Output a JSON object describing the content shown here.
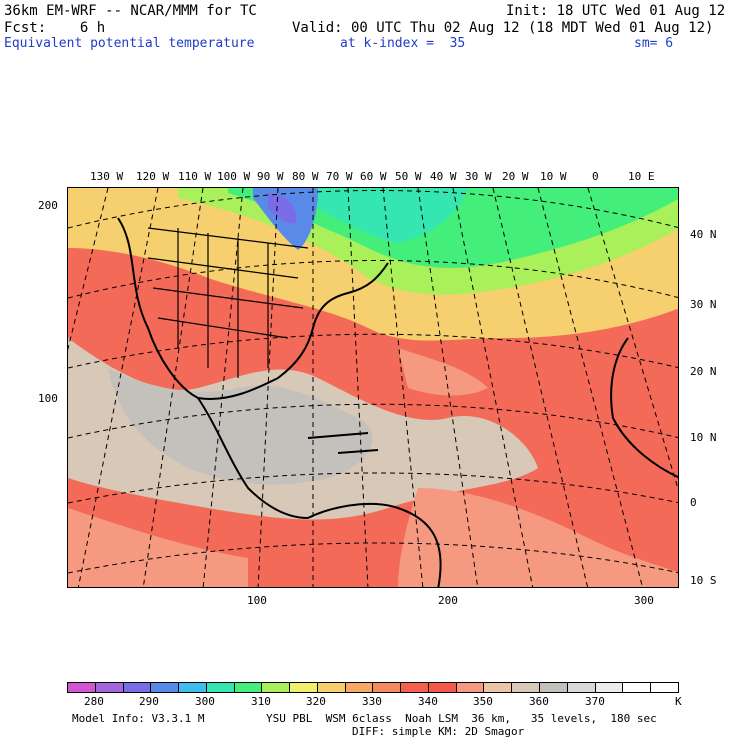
{
  "header": {
    "line1_left": "36km EM-WRF -- NCAR/MMM for TC",
    "line1_right": "Init: 18 UTC Wed 01 Aug 12",
    "line2_left": "Fcst:    6 h",
    "line2_right": "Valid: 00 UTC Thu 02 Aug 12 (18 MDT Wed 01 Aug 12)",
    "line3_left": "Equivalent potential temperature",
    "line3_mid": "at k-index =  35",
    "line3_right": "sm= 6"
  },
  "map": {
    "lon_labels": [
      "130 W",
      "120 W",
      "110 W",
      "100 W",
      "90 W",
      "80 W",
      "70 W",
      "60 W",
      "50 W",
      "40 W",
      "30 W",
      "20 W",
      "10 W",
      "0",
      "10 E"
    ],
    "lat_labels": [
      "40 N",
      "30 N",
      "20 N",
      "10 N",
      "0",
      "10 S"
    ],
    "grid_y_labels": [
      "200",
      "100"
    ],
    "grid_x_labels": [
      "100",
      "200",
      "300"
    ]
  },
  "colorbar": {
    "colors": [
      "#d255d2",
      "#a466dd",
      "#7a6be6",
      "#5a8ae8",
      "#3fbcf0",
      "#35e6b0",
      "#44ee7a",
      "#aaf05a",
      "#f0f06c",
      "#f6cf6e",
      "#f6a864",
      "#f58a60",
      "#f46050",
      "#f45848",
      "#f59a80",
      "#ecc4a6",
      "#d8c8b8",
      "#c4c0bc",
      "#d8d8d8",
      "#ececec",
      "#ffffff",
      "#ffffff"
    ],
    "labels": [
      "280",
      "290",
      "300",
      "310",
      "320",
      "330",
      "340",
      "350",
      "360",
      "370"
    ],
    "unit": "K"
  },
  "footer": {
    "model_info": "Model Info: V3.3.1 M",
    "physics_line1": "YSU PBL  WSM 6class  Noah LSM  36 km,   35 levels,  180 sec",
    "physics_line2": "DIFF: simple KM: 2D Smagor"
  }
}
